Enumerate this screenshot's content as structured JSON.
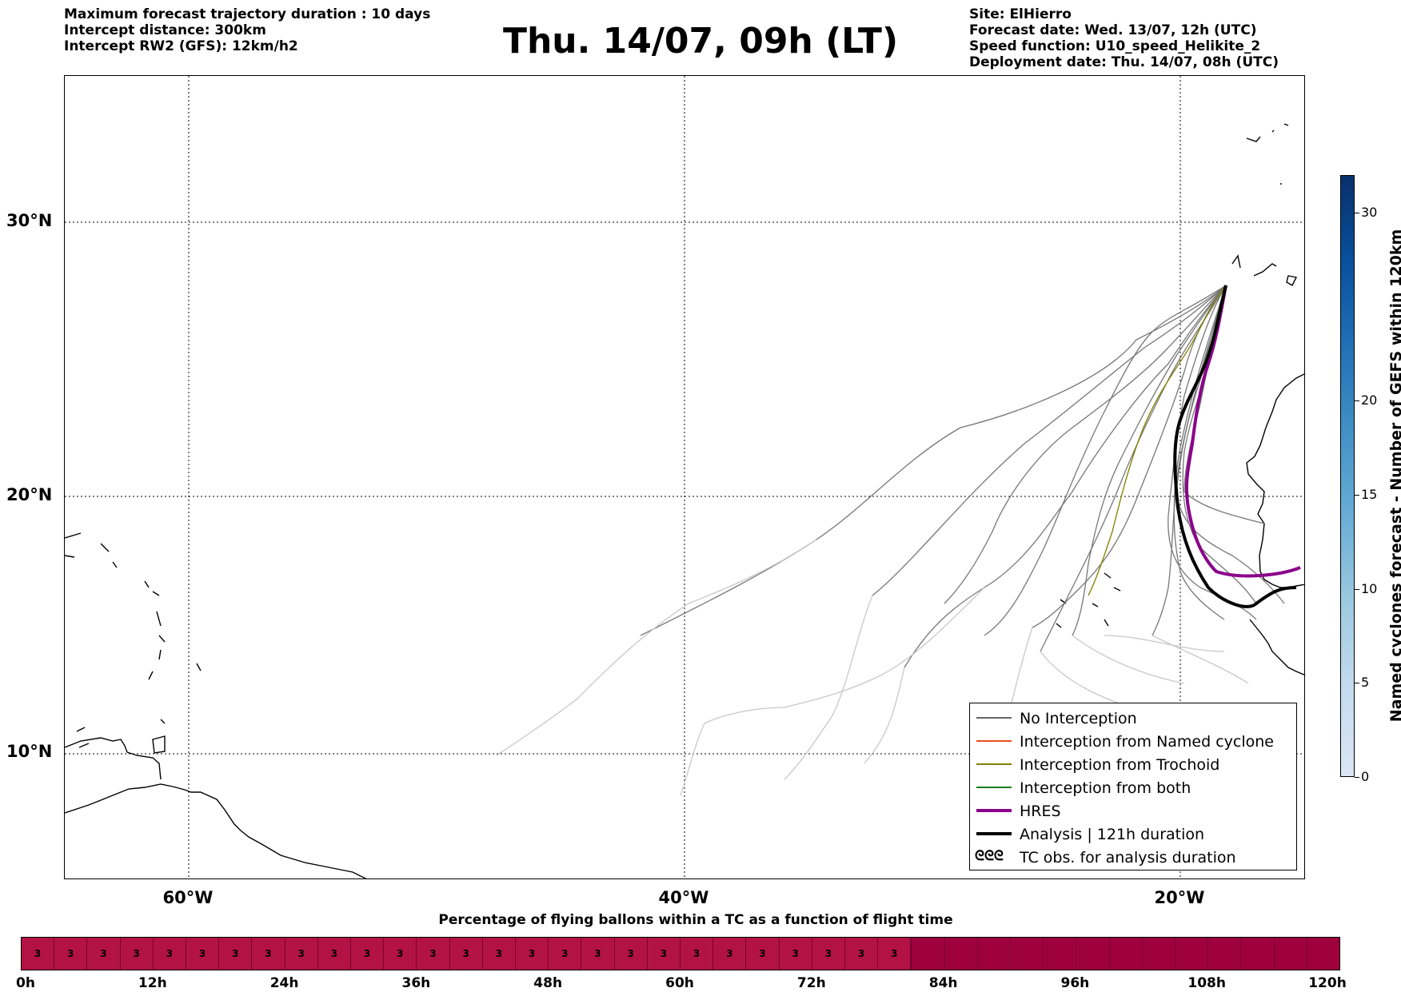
{
  "header_left": [
    "Maximum forecast trajectory duration : 10 days",
    "Intercept distance: 300km",
    "Intercept RW2 (GFS):  12km/h2"
  ],
  "title": "Thu. 14/07, 09h (LT)",
  "header_right": [
    "Site: ElHierro",
    "Forecast date: Wed. 13/07, 12h (UTC)",
    "Speed function: U10_speed_Helikite_2",
    "Deployment date: Thu. 14/07, 08h (UTC)"
  ],
  "map": {
    "lon_range": [
      -65,
      -15
    ],
    "lat_range": [
      5.3,
      34.6
    ],
    "lat_labels": [
      "30°N",
      "20°N",
      "10°N"
    ],
    "lat_values": [
      30,
      20,
      10
    ],
    "lon_labels": [
      "60°W",
      "40°W",
      "20°W"
    ],
    "lon_values": [
      -60,
      -40,
      -20
    ],
    "site": {
      "name": "ElHierro",
      "lon": -17.8,
      "lat": 27.7
    }
  },
  "legend": [
    {
      "label": "No Interception",
      "color": "#666666",
      "width": 1.2
    },
    {
      "label": "Interception from Named cyclone",
      "color": "#e8501a",
      "width": 1.2
    },
    {
      "label": "Interception from Trochoid",
      "color": "#808000",
      "width": 1.2
    },
    {
      "label": "Interception from both",
      "color": "#1a7f1a",
      "width": 1.2
    },
    {
      "label": "HRES",
      "color": "#8b008b",
      "width": 4
    },
    {
      "label": "Analysis | 121h duration",
      "color": "#000000",
      "width": 4
    },
    {
      "label": "TC obs. for analysis duration",
      "color": "#000000",
      "symbol": "ᘓᘓᘓ"
    }
  ],
  "colorbar": {
    "label": "Named cyclones forecast - Number of GEFS within 120km",
    "min": 0,
    "max": 32,
    "ticks": [
      0,
      5,
      10,
      15,
      20,
      30
    ],
    "colors": [
      "#dbe7f5",
      "#c6dbef",
      "#9ecae1",
      "#6baed6",
      "#4292c6",
      "#2171b5",
      "#08519c",
      "#08306b"
    ]
  },
  "flight_bar": {
    "title": "Percentage of flying ballons within a TC as a function of flight time",
    "hours_total": 120,
    "value_label": "3",
    "value_until_hour": 81,
    "cell_hours": 3,
    "tick_labels": [
      "0h",
      "12h",
      "24h",
      "36h",
      "48h",
      "60h",
      "72h",
      "84h",
      "96h",
      "108h",
      "120h"
    ]
  }
}
